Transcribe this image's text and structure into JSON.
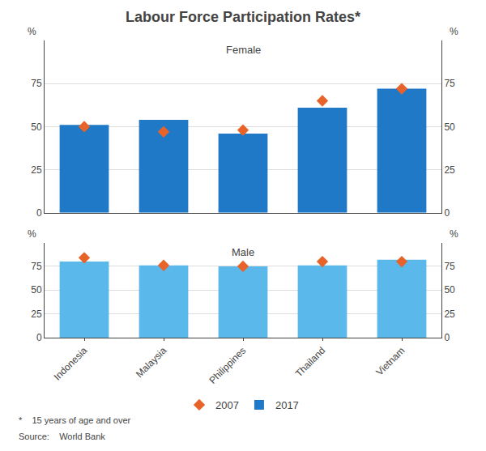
{
  "title": "Labour Force Participation Rates*",
  "legend": "bottom",
  "annotations": [
    "*    15 years of age and over",
    "Source:    World Bank"
  ],
  "chart_data": [
    {
      "type": "bar",
      "title": "Female",
      "categories": [
        "Indonesia",
        "Malaysia",
        "Philippines",
        "Thailand",
        "Vietnam"
      ],
      "series": [
        {
          "name": "2007",
          "type": "scatter",
          "marker": "diamond",
          "color": "#E8632A",
          "values": [
            50,
            47,
            48,
            65,
            72
          ]
        },
        {
          "name": "2017",
          "type": "bar",
          "color": "#2079C7",
          "values": [
            51,
            54,
            46,
            61,
            72
          ]
        }
      ],
      "ylabel": "%",
      "y2label": "%",
      "ylim": [
        0,
        100
      ],
      "yticks": [
        0,
        25,
        50,
        75
      ],
      "y2lim": [
        0,
        100
      ],
      "y2ticks": [
        0,
        25,
        50,
        75
      ],
      "grid": true,
      "tick_labels": "y"
    },
    {
      "type": "bar",
      "title": "Male",
      "categories": [
        "Indonesia",
        "Malaysia",
        "Philippines",
        "Thailand",
        "Vietnam"
      ],
      "series": [
        {
          "name": "2007",
          "type": "scatter",
          "marker": "diamond",
          "color": "#E8632A",
          "values": [
            84,
            76,
            75,
            80,
            80
          ]
        },
        {
          "name": "2017",
          "type": "bar",
          "color": "#5BB8EA",
          "values": [
            80,
            76,
            75,
            76,
            82
          ]
        }
      ],
      "ylabel": "%",
      "y2label": "%",
      "ylim": [
        0,
        100
      ],
      "yticks": [
        0,
        25,
        50,
        75
      ],
      "y2lim": [
        0,
        100
      ],
      "y2ticks": [
        0,
        25,
        50,
        75
      ],
      "grid": true
    }
  ]
}
